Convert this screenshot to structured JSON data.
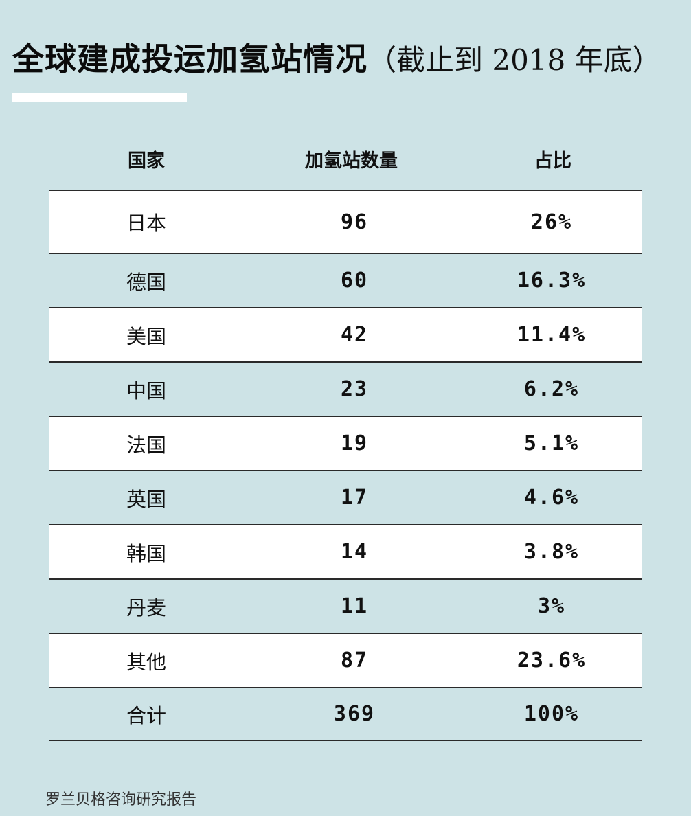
{
  "title": {
    "main": "全球建成投运加氢站情况",
    "sub": "（截止到 2018 年底）"
  },
  "table": {
    "headers": {
      "country": "国家",
      "count": "加氢站数量",
      "share": "占比"
    },
    "rows": [
      {
        "country": "日本",
        "count": "96",
        "share": "26%"
      },
      {
        "country": "德国",
        "count": "60",
        "share": "16.3%"
      },
      {
        "country": "美国",
        "count": "42",
        "share": "11.4%"
      },
      {
        "country": "中国",
        "count": "23",
        "share": "6.2%"
      },
      {
        "country": "法国",
        "count": "19",
        "share": "5.1%"
      },
      {
        "country": "英国",
        "count": "17",
        "share": "4.6%"
      },
      {
        "country": "韩国",
        "count": "14",
        "share": "3.8%"
      },
      {
        "country": "丹麦",
        "count": "11",
        "share": "3%"
      },
      {
        "country": "其他",
        "count": "87",
        "share": "23.6%"
      },
      {
        "country": "合计",
        "count": "369",
        "share": "100%"
      }
    ]
  },
  "source": "罗兰贝格咨询研究报告",
  "colors": {
    "background": "#cde3e6",
    "row_highlight": "#ffffff",
    "rule": "#2a2a2a"
  }
}
